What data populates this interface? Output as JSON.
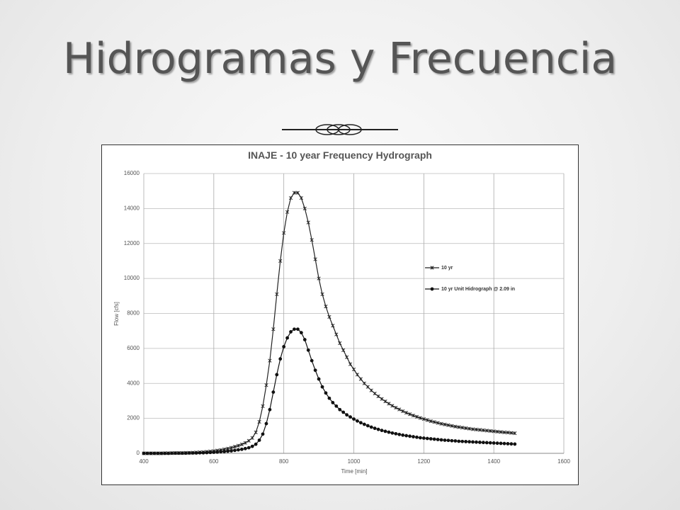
{
  "header": {
    "title": "Hidrogramas y Frecuencia"
  },
  "chart_data": {
    "type": "line",
    "title": "INAJE - 10 year Frequency Hydrograph",
    "x_label": "Time [min]",
    "y_label": "Flow [cfs]",
    "xlim": [
      400,
      1600
    ],
    "xticks": [
      400,
      600,
      800,
      1000,
      1200,
      1400,
      1600
    ],
    "ylim": [
      0,
      16000
    ],
    "yticks": [
      0,
      2000,
      4000,
      6000,
      8000,
      10000,
      12000,
      14000,
      16000
    ],
    "grid": true,
    "legend": "right",
    "x": [
      400,
      410,
      420,
      430,
      440,
      450,
      460,
      470,
      480,
      490,
      500,
      510,
      520,
      530,
      540,
      550,
      560,
      570,
      580,
      590,
      600,
      610,
      620,
      630,
      640,
      650,
      660,
      670,
      680,
      690,
      700,
      710,
      720,
      730,
      740,
      750,
      760,
      770,
      780,
      790,
      800,
      810,
      820,
      830,
      840,
      850,
      860,
      870,
      880,
      890,
      900,
      910,
      920,
      930,
      940,
      950,
      960,
      970,
      980,
      990,
      1000,
      1010,
      1020,
      1030,
      1040,
      1050,
      1060,
      1070,
      1080,
      1090,
      1100,
      1110,
      1120,
      1130,
      1140,
      1150,
      1160,
      1170,
      1180,
      1190,
      1200,
      1210,
      1220,
      1230,
      1240,
      1250,
      1260,
      1270,
      1280,
      1290,
      1300,
      1310,
      1320,
      1330,
      1340,
      1350,
      1360,
      1370,
      1380,
      1390,
      1400,
      1410,
      1420,
      1430,
      1440,
      1450,
      1460
    ],
    "series": [
      {
        "name": "10 yr",
        "color": "#222222",
        "marker": "x",
        "values": [
          0,
          0,
          0,
          0,
          0,
          0,
          10,
          10,
          10,
          20,
          20,
          20,
          30,
          30,
          40,
          50,
          60,
          70,
          90,
          110,
          130,
          160,
          190,
          230,
          270,
          320,
          380,
          440,
          510,
          600,
          720,
          880,
          1200,
          1800,
          2700,
          3900,
          5300,
          7100,
          9100,
          11000,
          12600,
          13800,
          14600,
          14900,
          14900,
          14600,
          14000,
          13200,
          12200,
          11100,
          10000,
          9100,
          8400,
          7800,
          7300,
          6800,
          6300,
          5900,
          5500,
          5100,
          4800,
          4500,
          4250,
          4000,
          3800,
          3600,
          3420,
          3260,
          3110,
          2970,
          2840,
          2720,
          2610,
          2510,
          2410,
          2320,
          2240,
          2160,
          2090,
          2020,
          1960,
          1900,
          1840,
          1790,
          1740,
          1690,
          1650,
          1610,
          1570,
          1530,
          1500,
          1470,
          1440,
          1410,
          1380,
          1360,
          1340,
          1320,
          1300,
          1280,
          1260,
          1240,
          1220,
          1200,
          1190,
          1170,
          1150
        ]
      },
      {
        "name": "10 yr Unit Hidrograph @ 2.09 in",
        "color": "#111111",
        "marker": "circle",
        "values": [
          0,
          0,
          0,
          0,
          0,
          0,
          0,
          0,
          10,
          10,
          10,
          10,
          10,
          20,
          20,
          20,
          30,
          30,
          40,
          50,
          60,
          70,
          90,
          100,
          120,
          140,
          170,
          200,
          230,
          270,
          320,
          400,
          520,
          750,
          1100,
          1700,
          2500,
          3500,
          4500,
          5400,
          6100,
          6600,
          6950,
          7100,
          7100,
          6900,
          6500,
          5900,
          5300,
          4750,
          4250,
          3800,
          3450,
          3150,
          2900,
          2700,
          2500,
          2350,
          2200,
          2080,
          1960,
          1850,
          1750,
          1660,
          1580,
          1500,
          1430,
          1370,
          1310,
          1260,
          1210,
          1160,
          1120,
          1080,
          1040,
          1010,
          980,
          950,
          920,
          890,
          870,
          850,
          830,
          810,
          790,
          770,
          750,
          740,
          720,
          710,
          690,
          680,
          670,
          660,
          650,
          640,
          630,
          620,
          610,
          600,
          590,
          580,
          570,
          560,
          550,
          540,
          530
        ]
      }
    ]
  }
}
